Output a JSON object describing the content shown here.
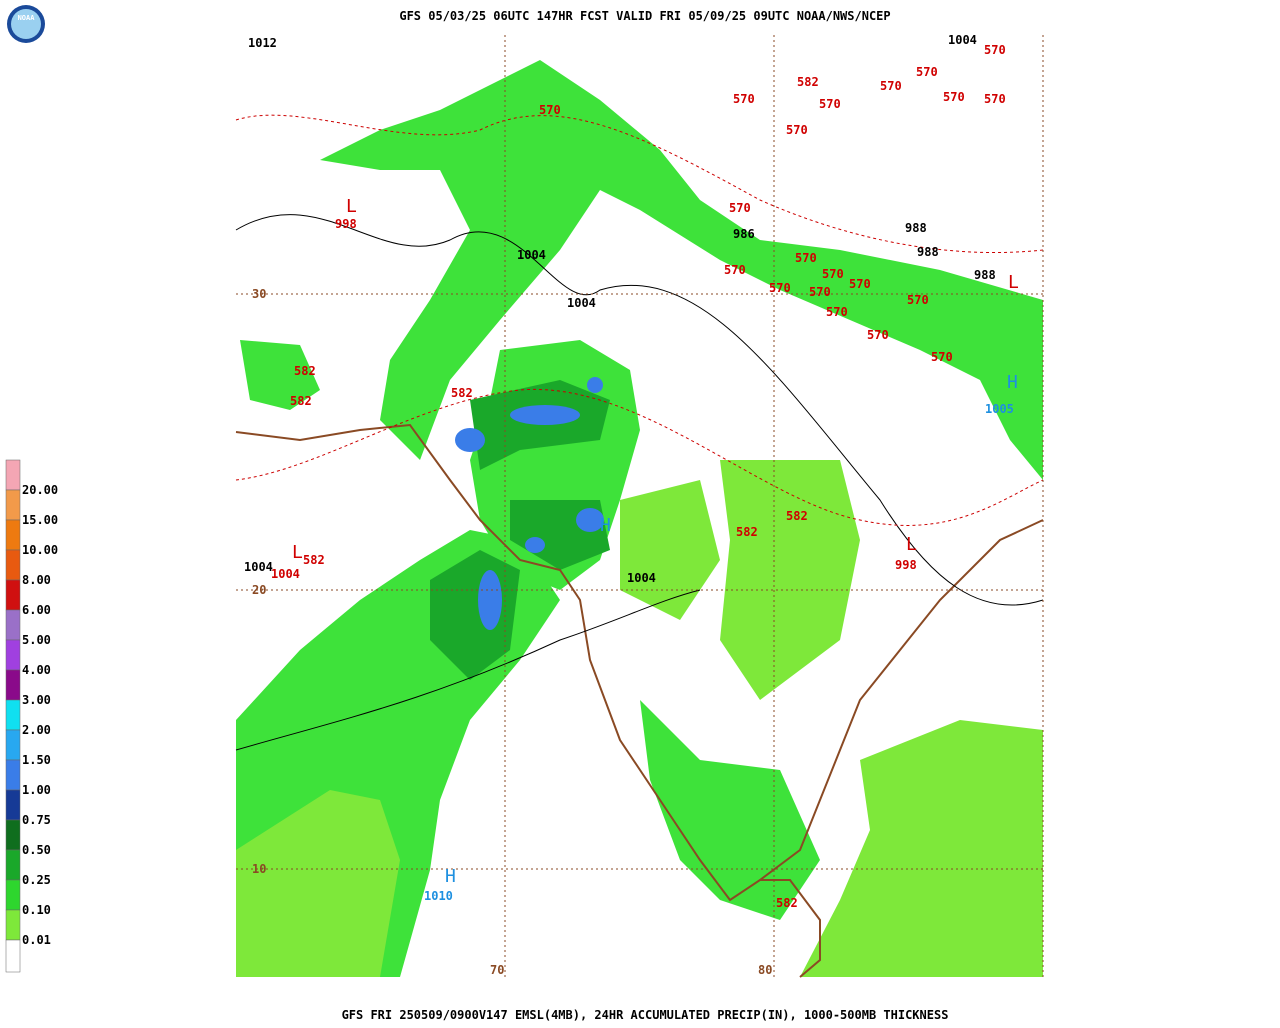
{
  "header": {
    "title": "GFS 05/03/25 06UTC 147HR FCST VALID FRI 05/09/25 09UTC NOAA/NWS/NCEP"
  },
  "footer": {
    "caption": "GFS FRI 250509/0900V147 EMSL(4MB), 24HR ACCUMULATED PRECIP(IN), 1000-500MB THICKNESS"
  },
  "logo": {
    "text": "NOAA"
  },
  "legend": {
    "items": [
      {
        "label": "20.00",
        "color": "#f4a6b4"
      },
      {
        "label": "15.00",
        "color": "#f29a4a"
      },
      {
        "label": "10.00",
        "color": "#ee7a10"
      },
      {
        "label": "8.00",
        "color": "#e85a10"
      },
      {
        "label": "6.00",
        "color": "#d01010"
      },
      {
        "label": "5.00",
        "color": "#9a70c8"
      },
      {
        "label": "4.00",
        "color": "#a040e0"
      },
      {
        "label": "3.00",
        "color": "#8a0a8a"
      },
      {
        "label": "2.00",
        "color": "#10e0f0"
      },
      {
        "label": "1.50",
        "color": "#28a8f0"
      },
      {
        "label": "1.00",
        "color": "#3a7de8"
      },
      {
        "label": "0.75",
        "color": "#163a96"
      },
      {
        "label": "0.50",
        "color": "#0f6e1e"
      },
      {
        "label": "0.25",
        "color": "#1aa82a"
      },
      {
        "label": "0.10",
        "color": "#2ed62e"
      },
      {
        "label": "0.01",
        "color": "#7ee83a"
      }
    ]
  },
  "map": {
    "labels": [
      "1012",
      "1004",
      "570",
      "570",
      "582",
      "570",
      "570",
      "570",
      "570",
      "570",
      "570",
      "570",
      "L",
      "998",
      "570",
      "986",
      "988",
      "1004",
      "988",
      "988",
      "L",
      "570",
      "570",
      "570",
      "570",
      "570",
      "570",
      "570",
      "30",
      "1004",
      "570",
      "570",
      "570",
      "582",
      "582",
      "582",
      "H",
      "1005",
      "582",
      "582",
      "L",
      "998",
      "L",
      "582",
      "1004",
      "1004",
      "H",
      "1004",
      "20",
      "10",
      "H",
      "1010",
      "582",
      "70",
      "80"
    ]
  }
}
